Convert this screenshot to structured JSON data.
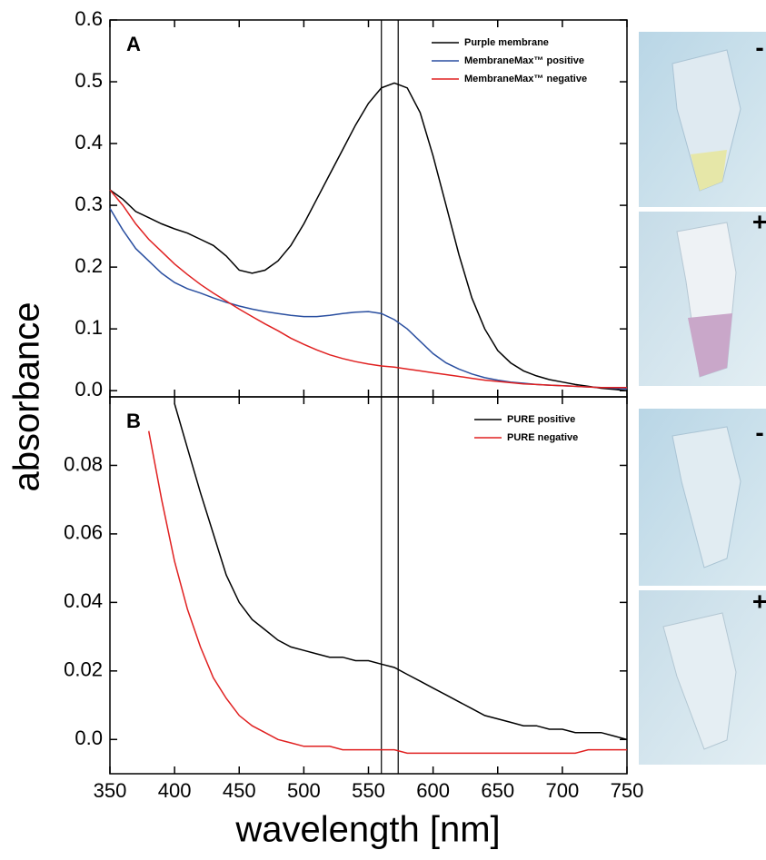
{
  "chart_data": [
    {
      "type": "line",
      "panel_label": "A",
      "ylabel": "absorbance",
      "x": [
        350,
        360,
        370,
        380,
        390,
        400,
        410,
        420,
        430,
        440,
        450,
        460,
        470,
        480,
        490,
        500,
        510,
        520,
        530,
        540,
        550,
        560,
        570,
        580,
        590,
        600,
        610,
        620,
        630,
        640,
        650,
        660,
        670,
        680,
        690,
        700,
        710,
        720,
        730,
        740,
        750
      ],
      "xlim": [
        350,
        750
      ],
      "xticks": [
        350,
        400,
        450,
        500,
        550,
        600,
        650,
        700,
        750
      ],
      "ylim": [
        -0.01,
        0.6
      ],
      "yticks": [
        {
          "value": 0,
          "label": "0.0"
        },
        0.1,
        0.2,
        0.3,
        0.4,
        0.5,
        0.6
      ],
      "vlines": [
        560,
        573
      ],
      "legend": "upper right",
      "series": [
        {
          "name": "Purple membrane",
          "color": "#000000",
          "values": [
            0.325,
            0.31,
            0.29,
            0.28,
            0.27,
            0.262,
            0.255,
            0.245,
            0.235,
            0.218,
            0.195,
            0.19,
            0.195,
            0.21,
            0.235,
            0.27,
            0.31,
            0.35,
            0.39,
            0.43,
            0.465,
            0.49,
            0.498,
            0.49,
            0.45,
            0.38,
            0.3,
            0.22,
            0.15,
            0.1,
            0.065,
            0.045,
            0.032,
            0.024,
            0.018,
            0.014,
            0.01,
            0.007,
            0.004,
            0.002,
            0.0
          ]
        },
        {
          "name": "MembraneMax™ positive",
          "color": "#2a4fa0",
          "values": [
            0.295,
            0.26,
            0.23,
            0.21,
            0.19,
            0.175,
            0.165,
            0.158,
            0.15,
            0.143,
            0.137,
            0.132,
            0.128,
            0.125,
            0.122,
            0.12,
            0.12,
            0.122,
            0.125,
            0.127,
            0.128,
            0.125,
            0.115,
            0.1,
            0.08,
            0.06,
            0.045,
            0.035,
            0.027,
            0.021,
            0.017,
            0.014,
            0.012,
            0.01,
            0.009,
            0.008,
            0.007,
            0.006,
            0.005,
            0.004,
            0.003
          ]
        },
        {
          "name": "MembraneMax™ negative",
          "color": "#e02020",
          "values": [
            0.325,
            0.3,
            0.27,
            0.245,
            0.225,
            0.205,
            0.188,
            0.172,
            0.158,
            0.145,
            0.132,
            0.12,
            0.108,
            0.097,
            0.085,
            0.075,
            0.066,
            0.058,
            0.052,
            0.047,
            0.043,
            0.04,
            0.038,
            0.035,
            0.032,
            0.029,
            0.026,
            0.023,
            0.02,
            0.017,
            0.015,
            0.013,
            0.011,
            0.01,
            0.009,
            0.008,
            0.007,
            0.006,
            0.005,
            0.005,
            0.005
          ]
        }
      ]
    },
    {
      "type": "line",
      "panel_label": "B",
      "xlabel": "wavelength [nm]",
      "x": [
        350,
        360,
        370,
        380,
        390,
        400,
        410,
        420,
        430,
        440,
        450,
        460,
        470,
        480,
        490,
        500,
        510,
        520,
        530,
        540,
        550,
        560,
        570,
        580,
        590,
        600,
        610,
        620,
        630,
        640,
        650,
        660,
        670,
        680,
        690,
        700,
        710,
        720,
        730,
        740,
        750
      ],
      "xlim": [
        350,
        750
      ],
      "xticks": [
        350,
        400,
        450,
        500,
        550,
        600,
        650,
        700,
        750
      ],
      "ylim": [
        -0.01,
        0.1
      ],
      "yticks": [
        {
          "value": 0,
          "label": "0.0"
        },
        0.02,
        0.04,
        0.06,
        0.08
      ],
      "vlines": [
        560,
        573
      ],
      "legend": "upper right",
      "series": [
        {
          "name": "PURE positive",
          "color": "#000000",
          "values": [
            null,
            null,
            null,
            null,
            null,
            0.098,
            0.085,
            0.072,
            0.06,
            0.048,
            0.04,
            0.035,
            0.032,
            0.029,
            0.027,
            0.026,
            0.025,
            0.024,
            0.024,
            0.023,
            0.023,
            0.022,
            0.021,
            0.019,
            0.017,
            0.015,
            0.013,
            0.011,
            0.009,
            0.007,
            0.006,
            0.005,
            0.004,
            0.004,
            0.003,
            0.003,
            0.002,
            0.002,
            0.002,
            0.001,
            0.0
          ]
        },
        {
          "name": "PURE negative",
          "color": "#e02020",
          "values": [
            null,
            null,
            null,
            0.09,
            0.07,
            0.052,
            0.038,
            0.027,
            0.018,
            0.012,
            0.007,
            0.004,
            0.002,
            0.0,
            -0.001,
            -0.002,
            -0.002,
            -0.002,
            -0.003,
            -0.003,
            -0.003,
            -0.003,
            -0.003,
            -0.004,
            -0.004,
            -0.004,
            -0.004,
            -0.004,
            -0.004,
            -0.004,
            -0.004,
            -0.004,
            -0.004,
            -0.004,
            -0.004,
            -0.004,
            -0.004,
            -0.003,
            -0.003,
            -0.003,
            -0.003
          ]
        }
      ]
    }
  ],
  "photos": [
    {
      "label": "-"
    },
    {
      "label": "+"
    },
    {
      "label": "-"
    },
    {
      "label": "+"
    }
  ]
}
